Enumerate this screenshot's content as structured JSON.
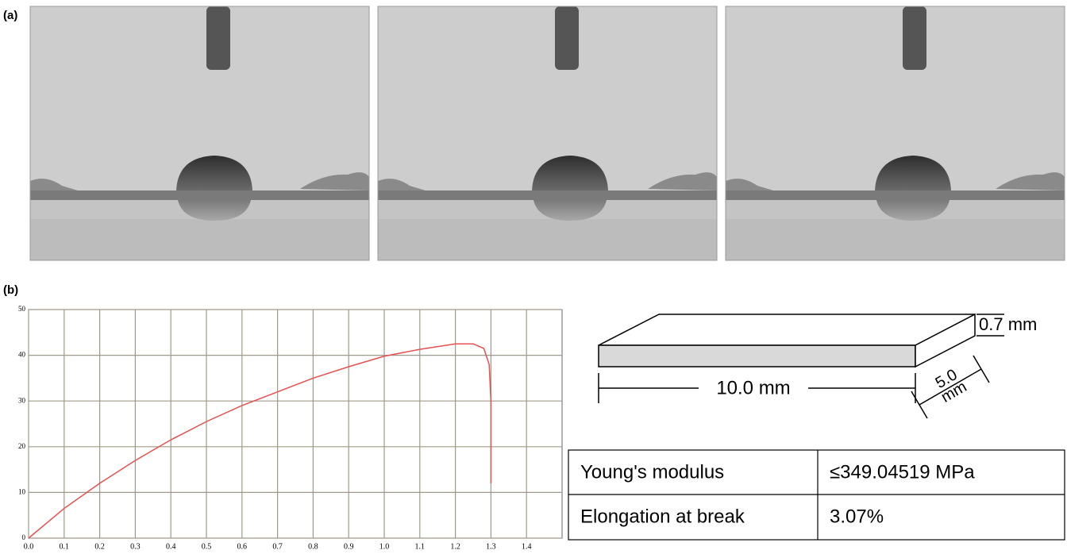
{
  "panels": {
    "a": "(a)",
    "b": "(b)"
  },
  "chart_data": {
    "type": "line",
    "x": [
      0,
      0.1,
      0.2,
      0.3,
      0.4,
      0.5,
      0.6,
      0.7,
      0.8,
      0.9,
      1.0,
      1.1,
      1.2,
      1.25,
      1.28,
      1.295,
      1.3,
      1.3,
      1.3
    ],
    "values": [
      0,
      6.5,
      12,
      17,
      21.5,
      25.5,
      29,
      32,
      35,
      37.5,
      39.8,
      41.3,
      42.5,
      42.5,
      41.5,
      38,
      30,
      20,
      12
    ],
    "color": "#e8504f",
    "xlim": [
      0,
      1.5
    ],
    "ylim": [
      0,
      50
    ],
    "xticks": [
      {
        "value": 0,
        "label": "0.0"
      },
      {
        "value": 0.1,
        "label": "0.1"
      },
      {
        "value": 0.2,
        "label": "0.2"
      },
      {
        "value": 0.3,
        "label": "0.3"
      },
      {
        "value": 0.4,
        "label": "0.4"
      },
      {
        "value": 0.5,
        "label": "0.5"
      },
      {
        "value": 0.6,
        "label": "0.6"
      },
      {
        "value": 0.7,
        "label": "0.7"
      },
      {
        "value": 0.8,
        "label": "0.8"
      },
      {
        "value": 0.9,
        "label": "0.9"
      },
      {
        "value": 1.0,
        "label": "1.0"
      },
      {
        "value": 1.1,
        "label": "1.1"
      },
      {
        "value": 1.2,
        "label": "1.2"
      },
      {
        "value": 1.3,
        "label": "1.3"
      },
      {
        "value": 1.4,
        "label": "1.4"
      }
    ],
    "yticks": [
      0,
      10,
      20,
      30,
      40,
      50
    ],
    "grid": true
  },
  "specimen": {
    "thickness": "0.7 mm",
    "length": "10.0 mm",
    "width_value": "5.0",
    "width_unit": "mm"
  },
  "table": {
    "rows": [
      [
        "Young's modulus",
        "≤349.04519 MPa"
      ],
      [
        "Elongation at break",
        "3.07%"
      ]
    ]
  }
}
